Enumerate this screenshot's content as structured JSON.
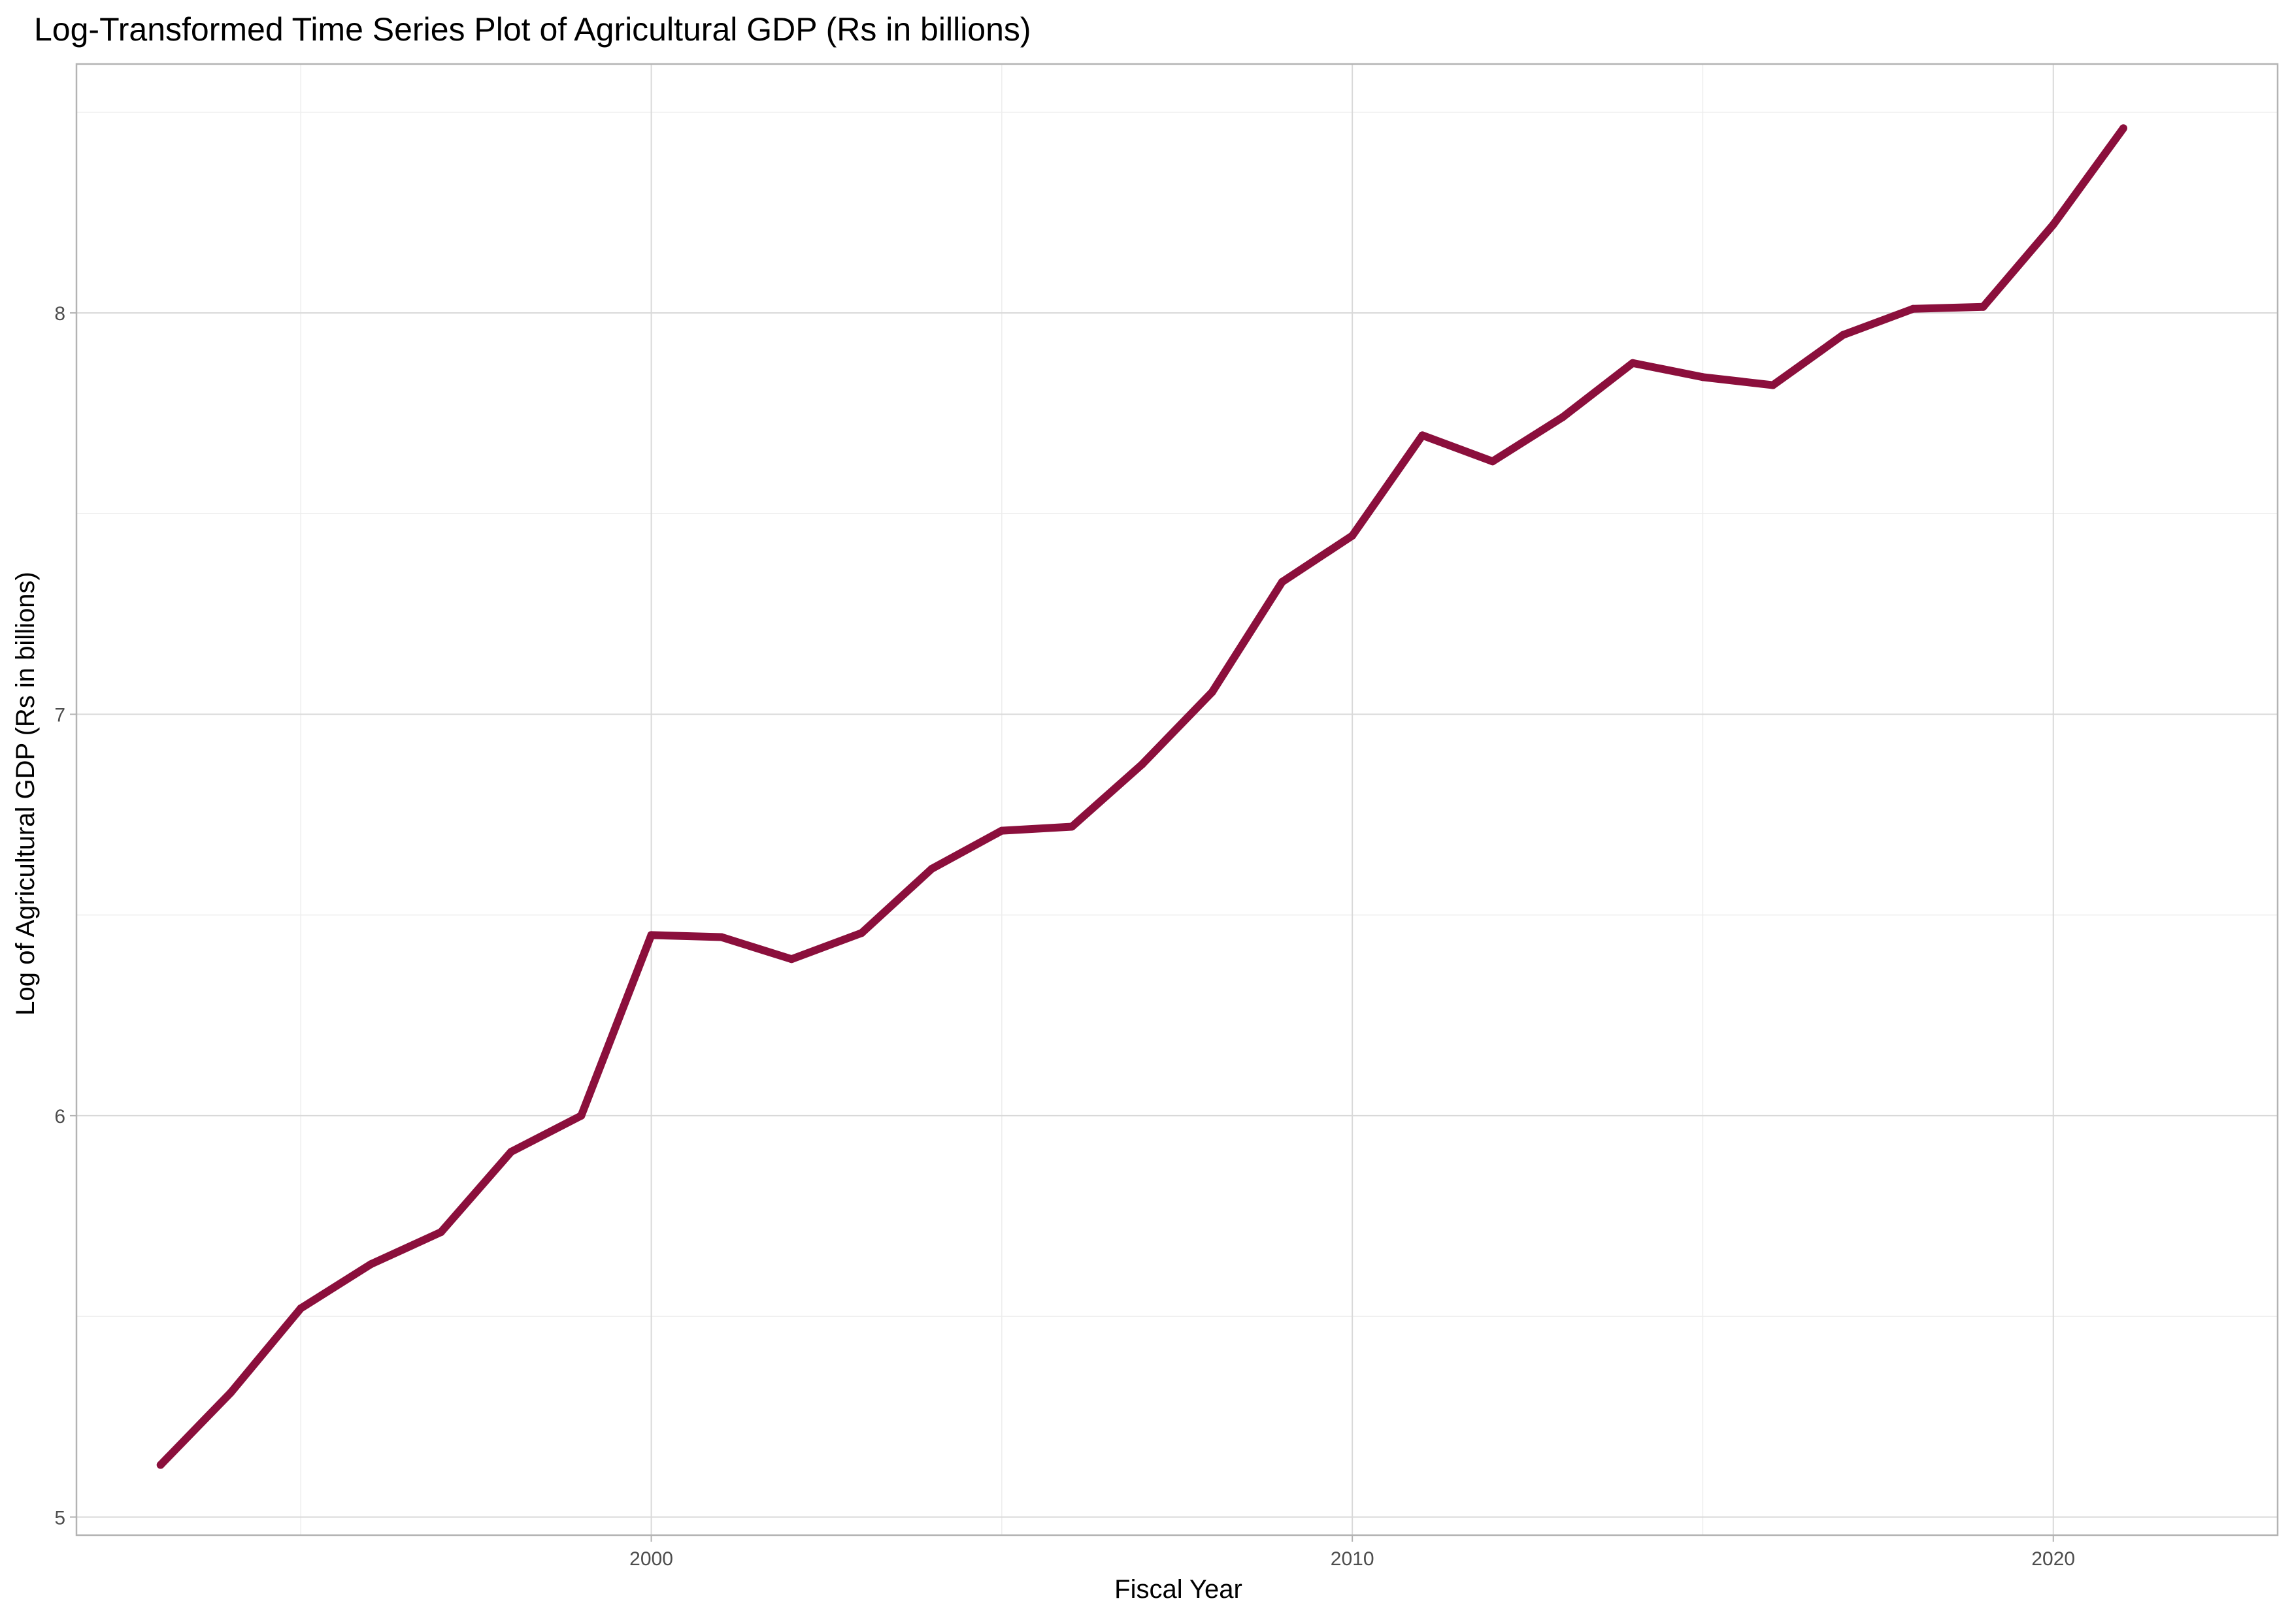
{
  "chart_data": {
    "type": "line",
    "title": "Log-Transformed Time Series Plot of Agricultural GDP (Rs in billions)",
    "xlabel": "Fiscal Year",
    "ylabel": "Log of Agricultural GDP (Rs in billions)",
    "xlim": [
      1991.8,
      2023.2
    ],
    "ylim": [
      4.955,
      8.62
    ],
    "x_ticks": [
      2000,
      2010,
      2020
    ],
    "y_ticks": [
      5,
      6,
      7,
      8
    ],
    "x_minor_ticks": [
      1995,
      2005,
      2015
    ],
    "y_minor_ticks": [
      5.5,
      6.5,
      7.5,
      8.5
    ],
    "grid": true,
    "legend": "none",
    "series": [
      {
        "color": "#8b0f3c",
        "x": [
          1993,
          1994,
          1995,
          1996,
          1997,
          1998,
          1999,
          2000,
          2001,
          2002,
          2003,
          2004,
          2005,
          2006,
          2007,
          2008,
          2009,
          2010,
          2011,
          2012,
          2013,
          2014,
          2015,
          2016,
          2017,
          2018,
          2019,
          2020,
          2021
        ],
        "values": [
          5.13,
          5.31,
          5.52,
          5.63,
          5.71,
          5.91,
          6.0,
          6.45,
          6.445,
          6.39,
          6.455,
          6.615,
          6.71,
          6.72,
          6.875,
          7.055,
          7.33,
          7.445,
          7.695,
          7.63,
          7.74,
          7.875,
          7.84,
          7.82,
          7.945,
          8.01,
          8.015,
          8.22,
          8.46
        ]
      }
    ]
  }
}
